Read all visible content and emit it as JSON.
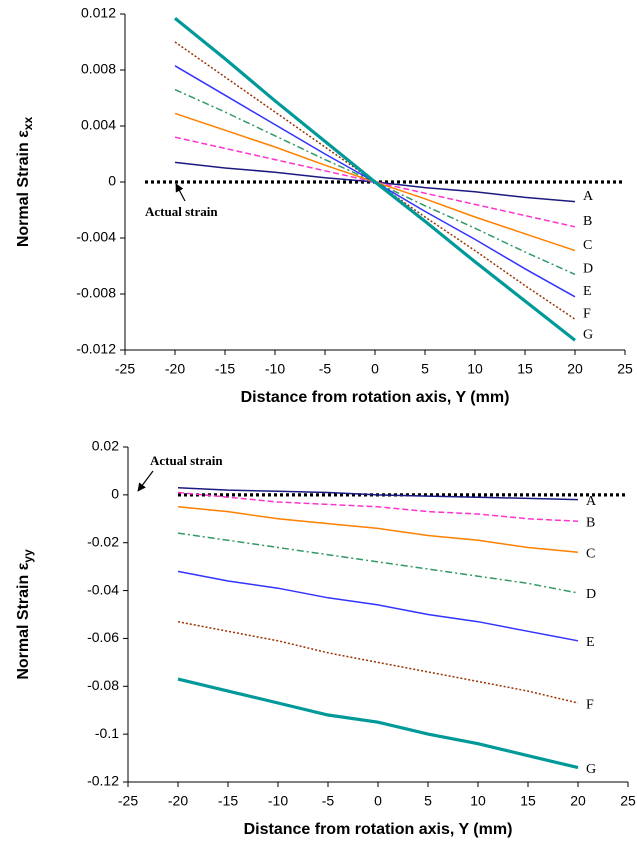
{
  "chart_data": [
    {
      "type": "line",
      "ylabel": "Normal Strain  ε",
      "ylabel_sub": "xx",
      "xlabel": "Distance from rotation axis, Y (mm)",
      "x": [
        -20,
        -15,
        -10,
        -5,
        0,
        5,
        10,
        15,
        20
      ],
      "xlim": [
        -25,
        25
      ],
      "xticks": [
        -25,
        -20,
        -15,
        -10,
        -5,
        0,
        5,
        10,
        15,
        20,
        25
      ],
      "ylim": [
        -0.012,
        0.012
      ],
      "yticks": [
        0.012,
        0.008,
        0.004,
        0,
        -0.004,
        -0.008,
        -0.012
      ],
      "series": [
        {
          "name": "Actual strain",
          "color": "#000000",
          "style": "reference",
          "x": [
            -23,
            25
          ],
          "values": [
            0,
            0
          ]
        },
        {
          "name": "A",
          "color": "#1a1a80",
          "style": "solid",
          "values": [
            0.0014,
            0.001,
            0.0007,
            0.0003,
            0,
            -0.0004,
            -0.0007,
            -0.0011,
            -0.0014
          ]
        },
        {
          "name": "B",
          "color": "#ff33cc",
          "style": "dashed",
          "values": [
            0.0032,
            0.0024,
            0.0016,
            0.0008,
            0,
            -0.0008,
            -0.0016,
            -0.0024,
            -0.0032
          ]
        },
        {
          "name": "C",
          "color": "#ff8000",
          "style": "solid",
          "values": [
            0.0049,
            0.0037,
            0.0025,
            0.0012,
            0,
            -0.0012,
            -0.0025,
            -0.0037,
            -0.0049
          ]
        },
        {
          "name": "D",
          "color": "#339966",
          "style": "dashdot",
          "values": [
            0.0066,
            0.005,
            0.0033,
            0.0016,
            0,
            -0.0017,
            -0.0033,
            -0.005,
            -0.0066
          ]
        },
        {
          "name": "E",
          "color": "#3333ff",
          "style": "solid",
          "values": [
            0.0083,
            0.0062,
            0.0041,
            0.002,
            0,
            -0.0021,
            -0.0041,
            -0.0062,
            -0.0082
          ]
        },
        {
          "name": "F",
          "color": "#993300",
          "style": "dotted",
          "values": [
            0.01,
            0.0075,
            0.005,
            0.0025,
            0,
            -0.0025,
            -0.0049,
            -0.0074,
            -0.0098
          ]
        },
        {
          "name": "G",
          "color": "#009999",
          "style": "thick",
          "values": [
            0.0117,
            0.0088,
            0.0058,
            0.0029,
            0,
            -0.0028,
            -0.0057,
            -0.0085,
            -0.0113
          ]
        }
      ]
    },
    {
      "type": "line",
      "ylabel": "Normal Strain  ε",
      "ylabel_sub": "yy",
      "xlabel": "Distance from rotation axis, Y (mm)",
      "x": [
        -20,
        -15,
        -10,
        -5,
        0,
        5,
        10,
        15,
        20
      ],
      "xlim": [
        -25,
        25
      ],
      "xticks": [
        -25,
        -20,
        -15,
        -10,
        -5,
        0,
        5,
        10,
        15,
        20,
        25
      ],
      "ylim": [
        -0.12,
        0.02
      ],
      "yticks": [
        0.02,
        0,
        -0.02,
        -0.04,
        -0.06,
        -0.08,
        -0.1,
        -0.12
      ],
      "series": [
        {
          "name": "Actual strain",
          "color": "#000000",
          "style": "reference",
          "x": [
            -20,
            25
          ],
          "values": [
            0,
            0
          ]
        },
        {
          "name": "A",
          "color": "#1a1a80",
          "style": "solid",
          "values": [
            0.003,
            0.002,
            0.0015,
            0.001,
            0,
            -0.0005,
            -0.001,
            -0.0015,
            -0.002
          ]
        },
        {
          "name": "B",
          "color": "#ff33cc",
          "style": "dashed",
          "values": [
            0.001,
            -0.001,
            -0.003,
            -0.004,
            -0.005,
            -0.007,
            -0.008,
            -0.01,
            -0.011
          ]
        },
        {
          "name": "C",
          "color": "#ff8000",
          "style": "solid",
          "values": [
            -0.005,
            -0.007,
            -0.01,
            -0.012,
            -0.014,
            -0.017,
            -0.019,
            -0.022,
            -0.024
          ]
        },
        {
          "name": "D",
          "color": "#339966",
          "style": "dashdot",
          "values": [
            -0.016,
            -0.019,
            -0.022,
            -0.025,
            -0.028,
            -0.031,
            -0.034,
            -0.037,
            -0.041
          ]
        },
        {
          "name": "E",
          "color": "#3333ff",
          "style": "solid",
          "values": [
            -0.032,
            -0.036,
            -0.039,
            -0.043,
            -0.046,
            -0.05,
            -0.053,
            -0.057,
            -0.061
          ]
        },
        {
          "name": "F",
          "color": "#993300",
          "style": "dotted",
          "values": [
            -0.053,
            -0.057,
            -0.061,
            -0.066,
            -0.07,
            -0.074,
            -0.078,
            -0.082,
            -0.087
          ]
        },
        {
          "name": "G",
          "color": "#009999",
          "style": "thick",
          "values": [
            -0.077,
            -0.082,
            -0.087,
            -0.092,
            -0.095,
            -0.1,
            -0.104,
            -0.109,
            -0.114
          ]
        }
      ]
    }
  ]
}
